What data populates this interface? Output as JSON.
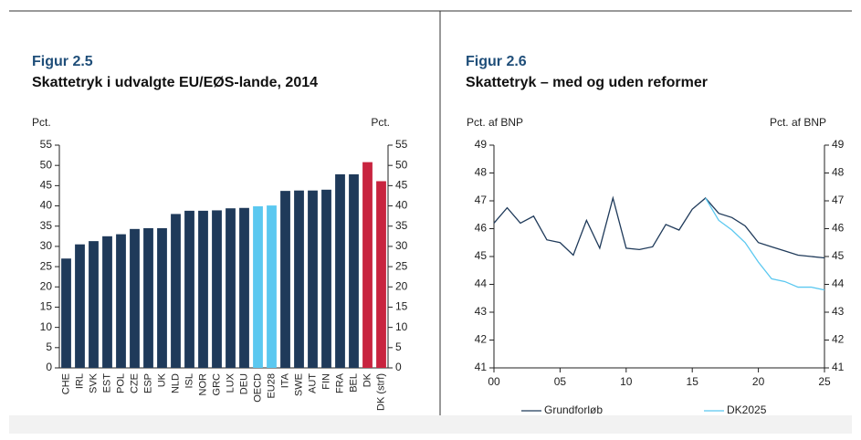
{
  "chart_data": [
    {
      "type": "bar",
      "title": "Figur 2.5",
      "subtitle": "Skattetryk i udvalgte EU/EØS-lande, 2014",
      "y_label": "Pct.",
      "y2_label": "Pct.",
      "categories": [
        "CHE",
        "IRL",
        "SVK",
        "EST",
        "POL",
        "CZE",
        "ESP",
        "UK",
        "NLD",
        "ISL",
        "NOR",
        "GRC",
        "LUX",
        "DEU",
        "OECD",
        "EU28",
        "ITA",
        "SWE",
        "AUT",
        "FIN",
        "FRA",
        "BEL",
        "DK",
        "DK (strf)"
      ],
      "values": [
        27,
        30.5,
        31.3,
        32.5,
        33,
        34.3,
        34.5,
        34.5,
        38,
        38.8,
        38.8,
        38.9,
        39.4,
        39.5,
        39.9,
        40.1,
        43.7,
        43.8,
        43.8,
        44,
        47.8,
        47.8,
        50.8,
        46.1
      ],
      "colors": [
        "#1f3a5a",
        "#1f3a5a",
        "#1f3a5a",
        "#1f3a5a",
        "#1f3a5a",
        "#1f3a5a",
        "#1f3a5a",
        "#1f3a5a",
        "#1f3a5a",
        "#1f3a5a",
        "#1f3a5a",
        "#1f3a5a",
        "#1f3a5a",
        "#1f3a5a",
        "#5bc8f0",
        "#5bc8f0",
        "#1f3a5a",
        "#1f3a5a",
        "#1f3a5a",
        "#1f3a5a",
        "#1f3a5a",
        "#1f3a5a",
        "#c8243f",
        "#c8243f"
      ],
      "ylim": [
        0,
        55
      ],
      "yticks": [
        0,
        5,
        10,
        15,
        20,
        25,
        30,
        35,
        40,
        45,
        50,
        55
      ],
      "y2lim": [
        0,
        55
      ],
      "y2ticks": [
        0,
        5,
        10,
        15,
        20,
        25,
        30,
        35,
        40,
        45,
        50,
        55
      ]
    },
    {
      "type": "line",
      "title": "Figur 2.6",
      "subtitle": "Skattetryk – med og uden reformer",
      "y_label": "Pct. af BNP",
      "y2_label": "Pct. af BNP",
      "x": [
        2000,
        2001,
        2002,
        2003,
        2004,
        2005,
        2006,
        2007,
        2008,
        2009,
        2010,
        2011,
        2012,
        2013,
        2014,
        2015,
        2016,
        2017,
        2018,
        2019,
        2020,
        2021,
        2022,
        2023,
        2024,
        2025
      ],
      "series": [
        {
          "name": "Grundforløb",
          "color": "#1f3a5a",
          "values": [
            46.2,
            46.75,
            46.2,
            46.45,
            45.6,
            45.5,
            45.05,
            46.3,
            45.3,
            47.1,
            45.3,
            45.25,
            45.35,
            46.15,
            45.95,
            46.7,
            47.1,
            46.55,
            46.4,
            46.1,
            45.5,
            45.35,
            45.2,
            45.05,
            45.0,
            44.95
          ]
        },
        {
          "name": "DK2025",
          "color": "#5bc8f0",
          "values": [
            null,
            null,
            null,
            null,
            null,
            null,
            null,
            null,
            null,
            null,
            null,
            null,
            null,
            null,
            null,
            null,
            47.1,
            46.3,
            45.95,
            45.5,
            44.8,
            44.2,
            44.1,
            43.9,
            43.9,
            43.8
          ]
        }
      ],
      "xlim": [
        2000,
        2025
      ],
      "xticks": [
        {
          "value": 2000,
          "label": "00"
        },
        {
          "value": 2005,
          "label": "05"
        },
        {
          "value": 2010,
          "label": "10"
        },
        {
          "value": 2015,
          "label": "15"
        },
        {
          "value": 2020,
          "label": "20"
        },
        {
          "value": 2025,
          "label": "25"
        }
      ],
      "ylim": [
        41,
        49
      ],
      "yticks": [
        41,
        42,
        43,
        44,
        45,
        46,
        47,
        48,
        49
      ],
      "y2lim": [
        41,
        49
      ],
      "y2ticks": [
        41,
        42,
        43,
        44,
        45,
        46,
        47,
        48,
        49
      ],
      "legend": "bottom"
    }
  ]
}
